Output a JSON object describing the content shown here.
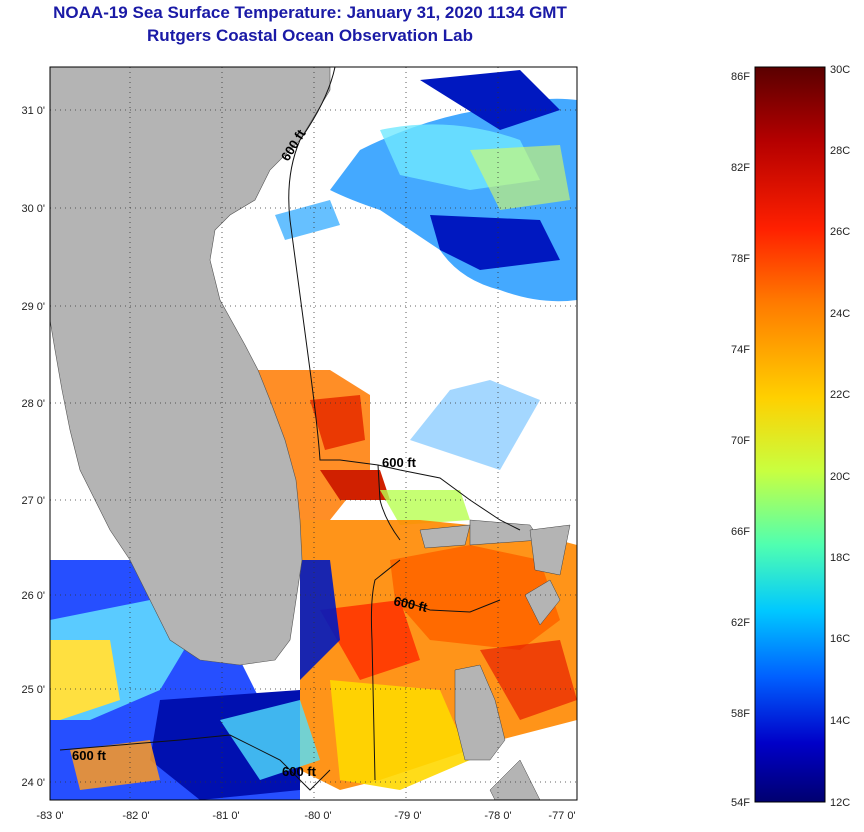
{
  "title": "NOAA-19 Sea Surface Temperature:  January 31, 2020 1134 GMT",
  "subtitle": "Rutgers Coastal Ocean Observation Lab",
  "lat_ticks": [
    "31 0'",
    "30 0'",
    "29 0'",
    "28 0'",
    "27 0'",
    "26 0'",
    "25 0'",
    "24 0'"
  ],
  "lon_ticks": [
    "-83 0'",
    "-82 0'",
    "-81 0'",
    "-80 0'",
    "-79 0'",
    "-78 0'",
    "-77 0'"
  ],
  "contour_labels": [
    "600 ft",
    "600 ft",
    "600 ft",
    "600 ft",
    "600 ft"
  ],
  "colorbar": {
    "f_labels": [
      "86F",
      "82F",
      "78F",
      "74F",
      "70F",
      "66F",
      "62F",
      "58F",
      "54F"
    ],
    "c_labels": [
      "30C",
      "28C",
      "26C",
      "24C",
      "22C",
      "20C",
      "18C",
      "16C",
      "14C",
      "12C"
    ],
    "colors": [
      "#5a0000",
      "#b40000",
      "#ff2000",
      "#ff7a00",
      "#ffd000",
      "#c8ff40",
      "#50ffb0",
      "#00c8ff",
      "#0060ff",
      "#0000c8",
      "#000070"
    ]
  },
  "land_color": "#b4b4b4"
}
